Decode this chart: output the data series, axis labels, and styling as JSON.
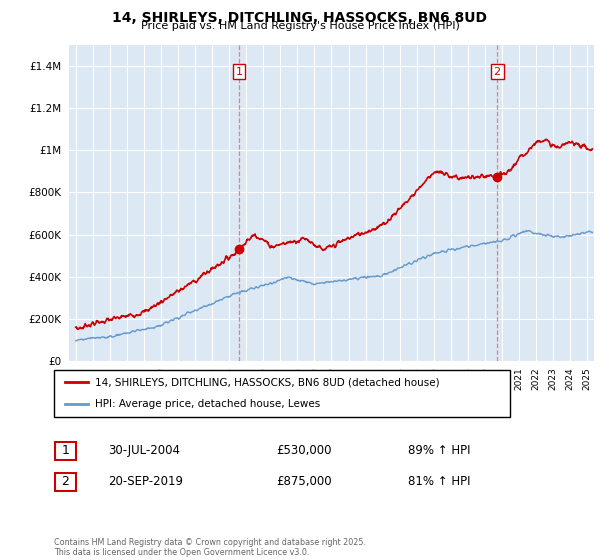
{
  "title": "14, SHIRLEYS, DITCHLING, HASSOCKS, BN6 8UD",
  "subtitle": "Price paid vs. HM Land Registry's House Price Index (HPI)",
  "red_label": "14, SHIRLEYS, DITCHLING, HASSOCKS, BN6 8UD (detached house)",
  "blue_label": "HPI: Average price, detached house, Lewes",
  "marker1_date": "30-JUL-2004",
  "marker1_price": 530000,
  "marker1_hpi": "89% ↑ HPI",
  "marker2_date": "20-SEP-2019",
  "marker2_price": 875000,
  "marker2_hpi": "81% ↑ HPI",
  "footer": "Contains HM Land Registry data © Crown copyright and database right 2025.\nThis data is licensed under the Open Government Licence v3.0.",
  "ylim": [
    0,
    1500000
  ],
  "yticks": [
    0,
    200000,
    400000,
    600000,
    800000,
    1000000,
    1200000,
    1400000
  ],
  "background_color": "#ffffff",
  "plot_bg_color": "#dce9f5",
  "grid_color": "#ffffff",
  "red_color": "#cc0000",
  "blue_color": "#6699cc",
  "marker1_x_year": 2004.58,
  "marker2_x_year": 2019.72,
  "xmin": 1994.6,
  "xmax": 2025.4
}
